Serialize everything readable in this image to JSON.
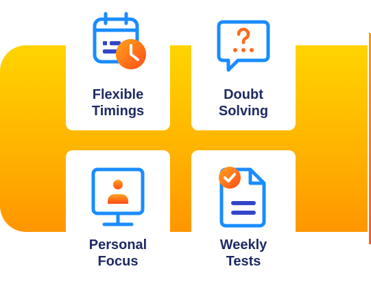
{
  "features": [
    {
      "line1": "Flexible",
      "line2": "Timings",
      "icon": "calendar-clock-icon"
    },
    {
      "line1": "Doubt",
      "line2": "Solving",
      "icon": "question-chat-icon"
    },
    {
      "line1": "Personal",
      "line2": "Focus",
      "icon": "monitor-person-icon"
    },
    {
      "line1": "Weekly",
      "line2": "Tests",
      "icon": "document-check-icon"
    }
  ],
  "colors": {
    "band_top": "#ffd400",
    "band_bottom": "#ff9600",
    "icon_blue": "#1a8cff",
    "icon_orange": "#ff6a1a",
    "text": "#1d2a63"
  }
}
